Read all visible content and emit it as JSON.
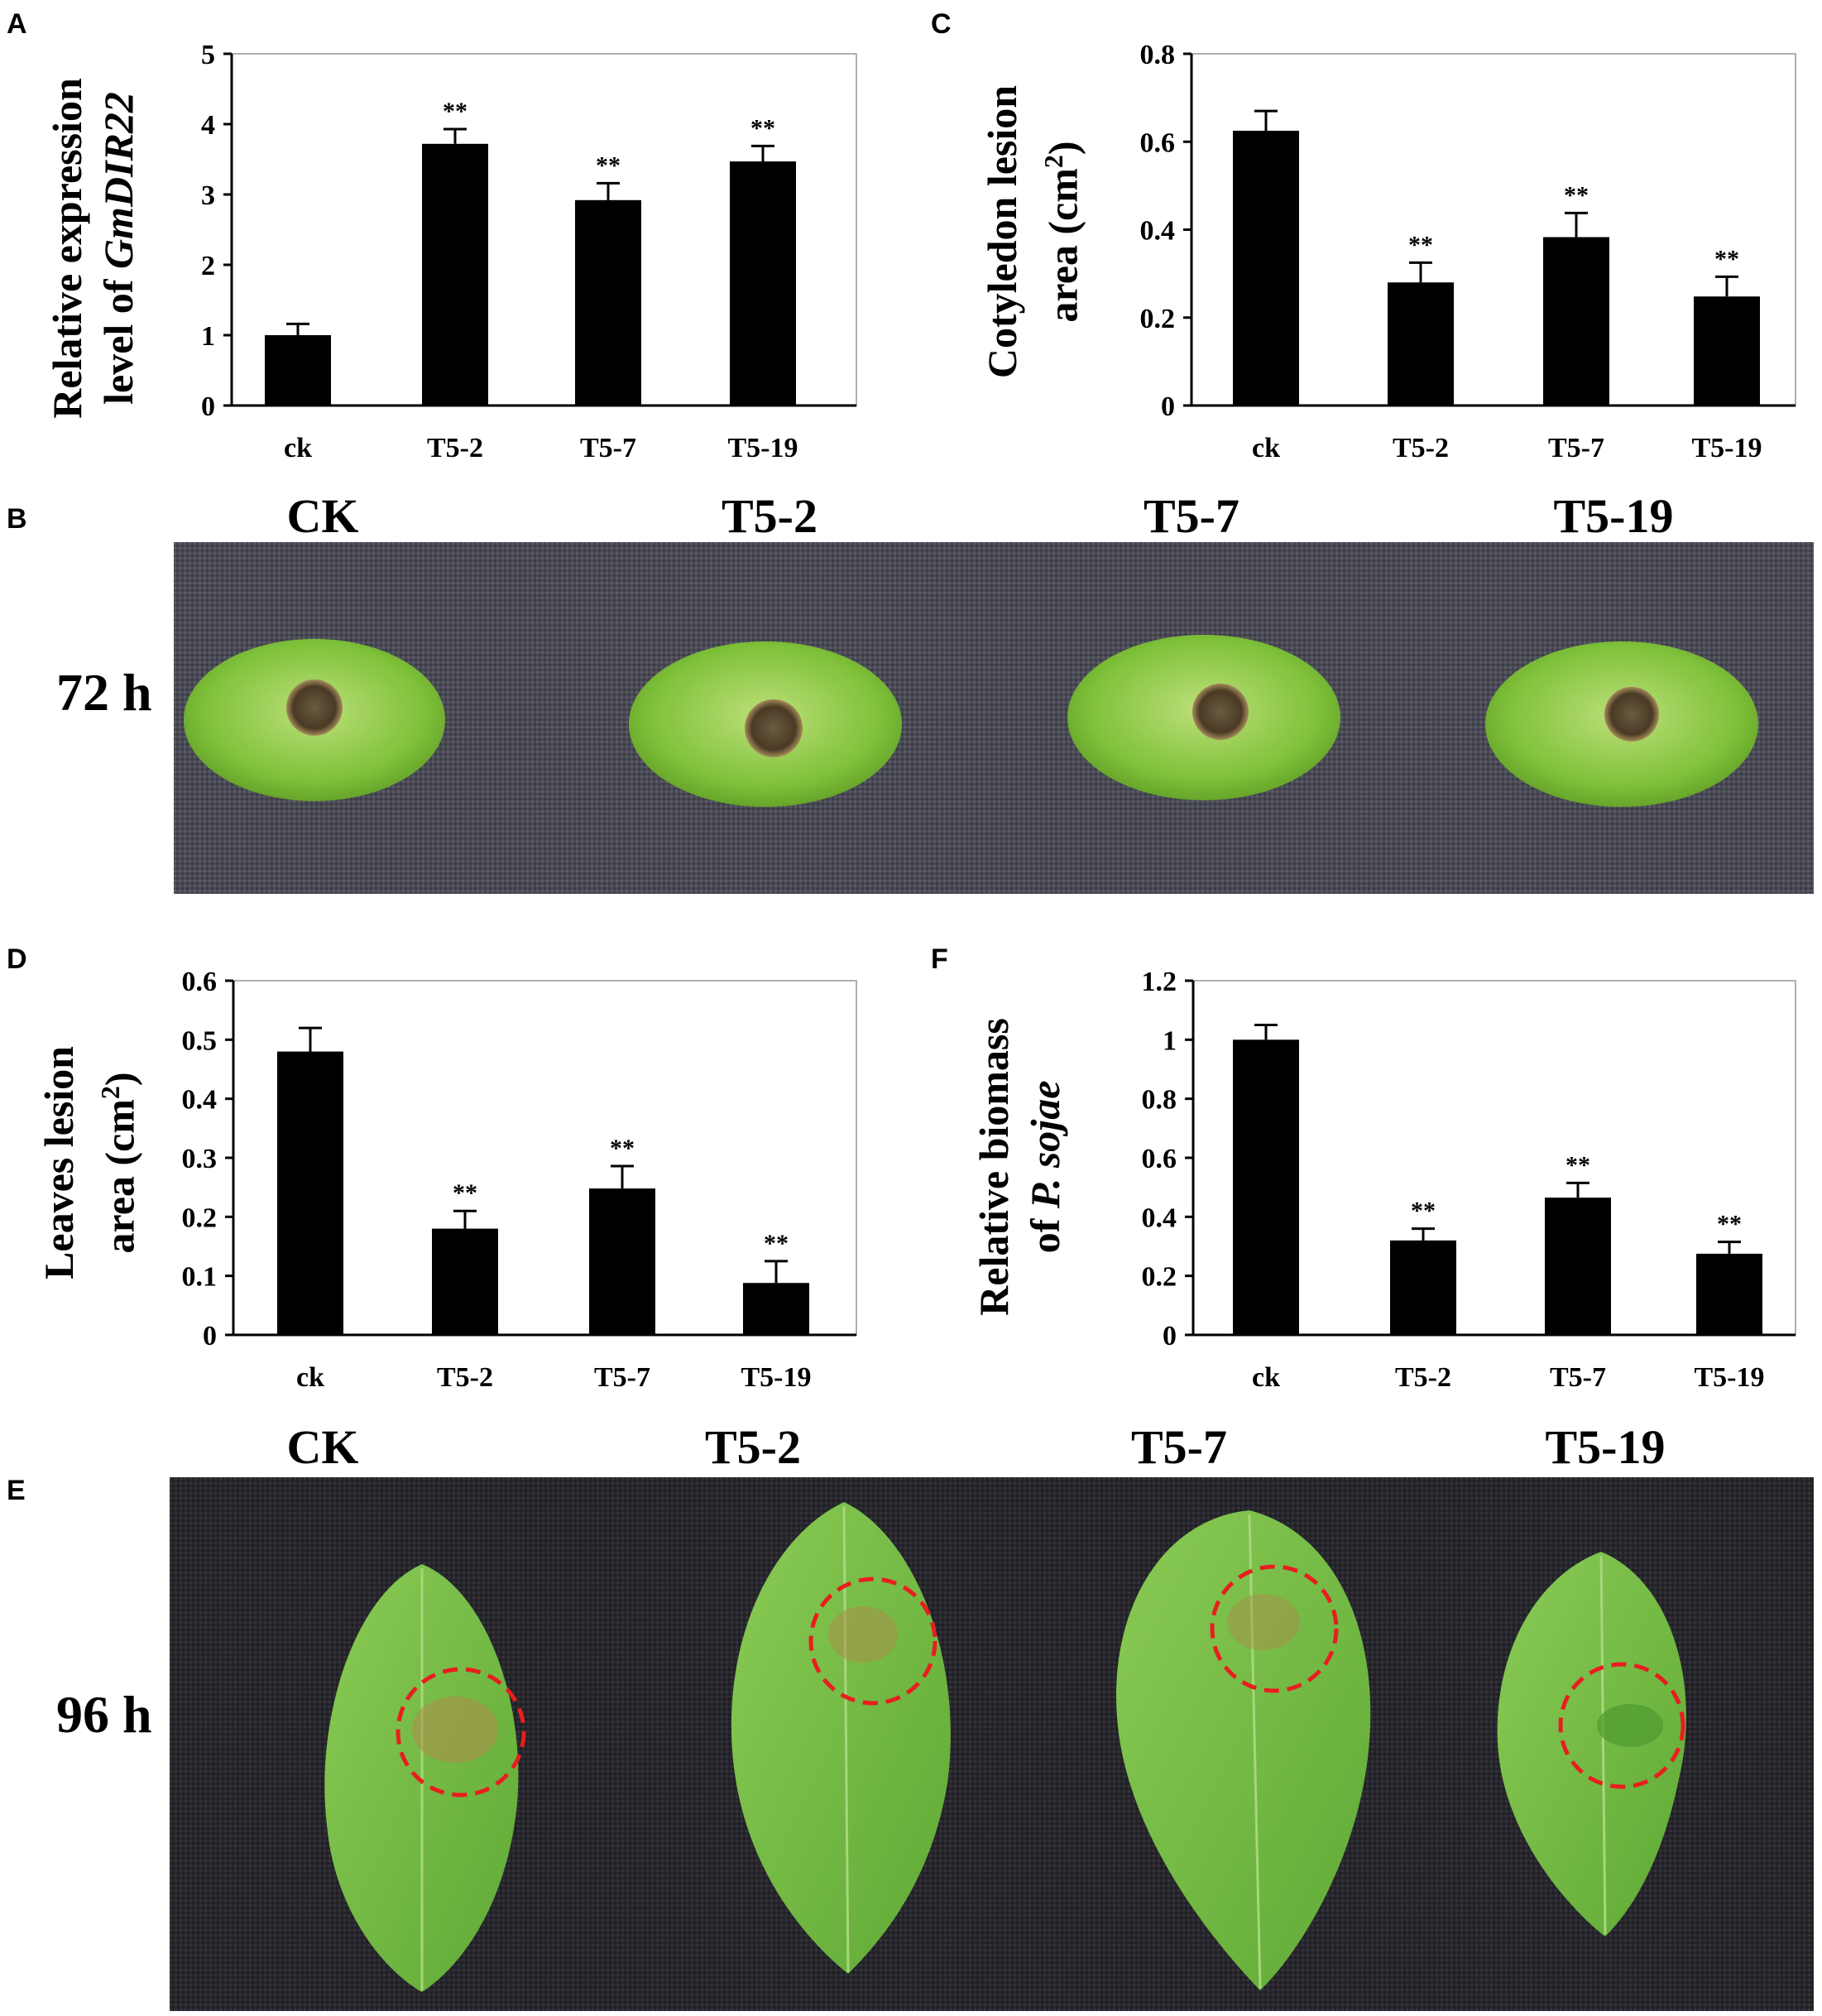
{
  "figure": {
    "panel_letters": {
      "A": "A",
      "B": "B",
      "C": "C",
      "D": "D",
      "E": "E",
      "F": "F"
    },
    "photo_B": {
      "titles": [
        "CK",
        "T5-2",
        "T5-7",
        "T5-19"
      ],
      "time": "72 h"
    },
    "photo_E": {
      "titles": [
        "CK",
        "T5-2",
        "T5-7",
        "T5-19"
      ],
      "time": "96 h"
    }
  },
  "chart_data": [
    {
      "id": "A",
      "type": "bar",
      "categories": [
        "ck",
        "T5-2",
        "T5-7",
        "T5-19"
      ],
      "values": [
        1.0,
        3.72,
        2.92,
        3.47
      ],
      "errors": [
        0.16,
        0.21,
        0.24,
        0.22
      ],
      "significance": [
        "",
        "**",
        "**",
        "**"
      ],
      "ylabel_line1": "Relative expression",
      "ylabel_line2_prefix": "level of ",
      "ylabel_line2_italic": "GmDIR22",
      "ylim": [
        0,
        5
      ],
      "yticks": [
        "0",
        "1",
        "2",
        "3",
        "4",
        "5"
      ],
      "bar_color": "#000000"
    },
    {
      "id": "C",
      "type": "bar",
      "categories": [
        "ck",
        "T5-2",
        "T5-7",
        "T5-19"
      ],
      "values": [
        0.625,
        0.28,
        0.383,
        0.248
      ],
      "errors": [
        0.045,
        0.045,
        0.055,
        0.045
      ],
      "significance": [
        "",
        "**",
        "**",
        "**"
      ],
      "ylabel_line1": "Cotyledon lesion",
      "ylabel_line2_prefix": "area (cm",
      "ylabel_line2_sup": "2",
      "ylabel_line2_suffix": ")",
      "ylim": [
        0,
        0.8
      ],
      "yticks": [
        "0",
        "0.2",
        "0.4",
        "0.6",
        "0.8"
      ],
      "bar_color": "#000000"
    },
    {
      "id": "D",
      "type": "bar",
      "categories": [
        "ck",
        "T5-2",
        "T5-7",
        "T5-19"
      ],
      "values": [
        0.48,
        0.18,
        0.248,
        0.088
      ],
      "errors": [
        0.04,
        0.03,
        0.038,
        0.037
      ],
      "significance": [
        "",
        "**",
        "**",
        "**"
      ],
      "ylabel_line1": "Leaves lesion",
      "ylabel_line2_prefix": "area (cm",
      "ylabel_line2_sup": "2",
      "ylabel_line2_suffix": ")",
      "ylim": [
        0,
        0.6
      ],
      "yticks": [
        "0",
        "0.1",
        "0.2",
        "0.3",
        "0.4",
        "0.5",
        "0.6"
      ],
      "bar_color": "#000000"
    },
    {
      "id": "F",
      "type": "bar",
      "categories": [
        "ck",
        "T5-2",
        "T5-7",
        "T5-19"
      ],
      "values": [
        1.0,
        0.32,
        0.465,
        0.275
      ],
      "errors": [
        0.05,
        0.04,
        0.05,
        0.04
      ],
      "significance": [
        "",
        "**",
        "**",
        "**"
      ],
      "ylabel_line1": "Relative biomass",
      "ylabel_line2_prefix": "of ",
      "ylabel_line2_italic": "P. sojae",
      "ylim": [
        0,
        1.2
      ],
      "yticks": [
        "0",
        "0.2",
        "0.4",
        "0.6",
        "0.8",
        "1",
        "1.2"
      ],
      "bar_color": "#000000"
    }
  ]
}
